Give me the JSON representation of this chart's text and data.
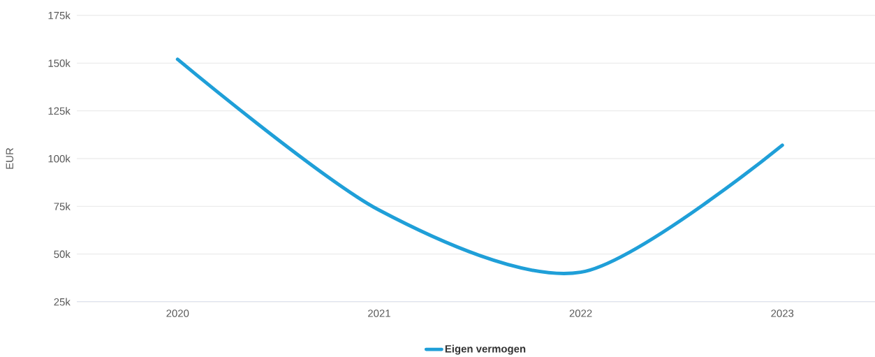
{
  "chart_data": {
    "type": "line",
    "ylabel": "EUR",
    "categories": [
      "2020",
      "2021",
      "2022",
      "2023"
    ],
    "series": [
      {
        "name": "Eigen vermogen",
        "color": "#1f9fd8",
        "values": [
          152000,
          73000,
          40500,
          107000
        ]
      }
    ],
    "ylim": [
      25000,
      175000
    ],
    "yticks": [
      {
        "value": 25000,
        "label": "25k"
      },
      {
        "value": 50000,
        "label": "50k"
      },
      {
        "value": 75000,
        "label": "75k"
      },
      {
        "value": 100000,
        "label": "100k"
      },
      {
        "value": 125000,
        "label": "125k"
      },
      {
        "value": 150000,
        "label": "150k"
      },
      {
        "value": 175000,
        "label": "175k"
      }
    ],
    "grid": "y",
    "legend": "bottom"
  }
}
